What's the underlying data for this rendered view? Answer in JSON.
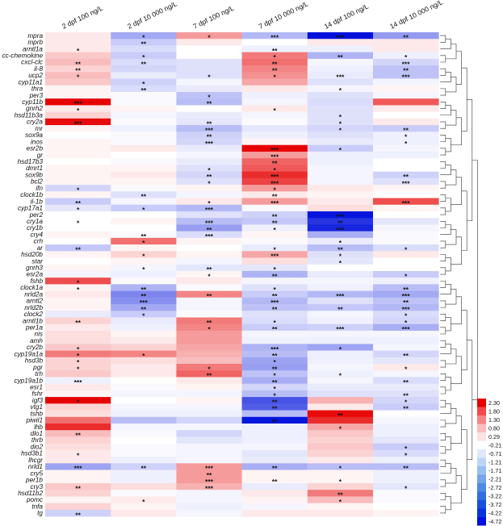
{
  "chart_data": {
    "type": "heatmap",
    "columns": [
      "2 dpf 100 ng/L",
      "2 dpf 10 000 ng/L",
      "7 dpf 100 ng/L",
      "7 dpf 10 000 ng/L",
      "14 dpf 100 ng/L",
      "14 dpf 10 000 ng/L"
    ],
    "rows": [
      "mpra",
      "mprb",
      "arntl1a",
      "cc-chemokine",
      "cxcl-clc",
      "il-8",
      "ucp2",
      "cyp11a1",
      "thra",
      "per3",
      "cyp11b",
      "gnrh2",
      "hsd11b3a",
      "cry2a",
      "mr",
      "sox9a",
      "inos",
      "esr2b",
      "gr",
      "hsd17b3",
      "dmrt1",
      "sox9b",
      "bcl2",
      "ifn",
      "clock1b",
      "il-1b",
      "cyp17a1",
      "per2",
      "cry1a",
      "cry1b",
      "cry4",
      "crh",
      "ar",
      "hsd20b",
      "star",
      "gnrh3",
      "esr2a",
      "fshb",
      "clock1a",
      "nrld2a",
      "arntl2",
      "nrld2b",
      "clock2",
      "arntl1b",
      "per1a",
      "nis",
      "amh",
      "cry2b",
      "cyp19a1a",
      "hsd3b",
      "pgr",
      "trh",
      "cyp19a1b",
      "esr1",
      "fshr",
      "igf3",
      "vtg1",
      "tshb",
      "piwil1",
      "lhb",
      "dlo1",
      "thrb",
      "dio2",
      "hsd3b1",
      "lhcgr",
      "nrld1",
      "cry5",
      "per1b",
      "cry3",
      "hsd11b2",
      "pomc",
      "tnfa",
      "tg"
    ],
    "values": [
      [
        0.2,
        -1.7,
        0.9,
        -1.4,
        -4.7,
        -2.0
      ],
      [
        0.2,
        -1.0,
        0.2,
        0.0,
        0.2,
        0.2
      ],
      [
        0.2,
        -0.7,
        0.0,
        -0.3,
        -0.3,
        0.2
      ],
      [
        0.5,
        -1.0,
        0.0,
        1.2,
        -1.5,
        -0.3
      ],
      [
        0.6,
        -0.7,
        -0.6,
        1.3,
        -0.2,
        -0.8
      ],
      [
        0.4,
        -0.8,
        -0.6,
        1.1,
        -0.3,
        -1.2
      ],
      [
        0.6,
        -0.4,
        -0.6,
        1.0,
        -0.4,
        -1.2
      ],
      [
        0.5,
        -0.9,
        -0.2,
        0.8,
        -0.6,
        -0.2
      ],
      [
        0.1,
        -0.7,
        -0.4,
        0.2,
        -0.2,
        0.1
      ],
      [
        0.1,
        -0.1,
        -1.2,
        -0.3,
        -0.6,
        -0.2
      ],
      [
        2.3,
        -0.1,
        -1.3,
        -0.2,
        -0.7,
        1.5
      ],
      [
        0.2,
        0.1,
        0.0,
        0.2,
        -0.6,
        0.2
      ],
      [
        0.4,
        -0.2,
        -0.4,
        -0.2,
        -0.6,
        0.0
      ],
      [
        2.2,
        -0.1,
        -0.5,
        -0.1,
        -0.6,
        0.2
      ],
      [
        0.1,
        -0.3,
        -1.3,
        -0.5,
        -0.8,
        -1.0
      ],
      [
        0.0,
        -0.1,
        -0.9,
        -0.3,
        -0.6,
        -0.3
      ],
      [
        0.1,
        -0.1,
        -0.8,
        0.1,
        -0.4,
        -0.3
      ],
      [
        0.1,
        0.2,
        -0.4,
        2.3,
        -1.0,
        -0.2
      ],
      [
        0.1,
        0.0,
        -0.2,
        0.9,
        -0.3,
        -0.3
      ],
      [
        0.0,
        -0.1,
        -0.4,
        1.4,
        -0.3,
        0.0
      ],
      [
        0.1,
        0.1,
        -0.6,
        1.5,
        -0.2,
        0.0
      ],
      [
        0.1,
        0.2,
        -0.8,
        1.9,
        -0.2,
        -0.9
      ],
      [
        0.1,
        0.1,
        -0.6,
        1.7,
        -0.2,
        -0.6
      ],
      [
        -0.8,
        -0.1,
        0.1,
        0.9,
        0.2,
        0.1
      ],
      [
        0.1,
        -0.6,
        -0.2,
        0.2,
        0.1,
        0.0
      ],
      [
        -1.0,
        -0.2,
        0.2,
        0.9,
        0.2,
        1.6
      ],
      [
        -0.5,
        -1.0,
        -1.4,
        -0.1,
        0.3,
        0.1
      ],
      [
        0.0,
        0.0,
        -0.6,
        -0.9,
        -4.6,
        0.0
      ],
      [
        0.0,
        0.1,
        -1.3,
        -1.1,
        -4.0,
        -0.5
      ],
      [
        0.0,
        0.0,
        -1.9,
        -0.3,
        -4.3,
        -0.2
      ],
      [
        0.1,
        -0.1,
        -0.7,
        0.1,
        -1.6,
        -0.1
      ],
      [
        0.0,
        1.3,
        0.1,
        -0.1,
        -0.4,
        -0.1
      ],
      [
        -1.1,
        0.1,
        0.0,
        -0.4,
        -1.3,
        -0.7
      ],
      [
        0.1,
        0.4,
        0.1,
        0.8,
        -0.6,
        0.2
      ],
      [
        0.0,
        0.1,
        -0.2,
        0.3,
        -0.5,
        0.0
      ],
      [
        0.1,
        -0.2,
        -0.5,
        -0.5,
        0.0,
        0.0
      ],
      [
        -0.2,
        -0.3,
        0.1,
        -1.5,
        -0.4,
        -1.0
      ],
      [
        1.6,
        -0.1,
        0.2,
        -0.2,
        -0.2,
        -0.3
      ],
      [
        0.1,
        -1.5,
        -0.1,
        -0.6,
        -0.3,
        -1.3
      ],
      [
        0.2,
        -2.4,
        1.1,
        -1.0,
        -1.4,
        -1.7
      ],
      [
        0.1,
        -2.2,
        -0.2,
        -1.4,
        -0.6,
        -1.2
      ],
      [
        0.1,
        -1.7,
        -0.2,
        -1.2,
        -1.1,
        -1.4
      ],
      [
        -0.4,
        -1.0,
        -0.1,
        -0.6,
        -0.2,
        -0.7
      ],
      [
        0.4,
        -0.4,
        1.2,
        -0.7,
        -0.3,
        -0.8
      ],
      [
        0.2,
        -0.3,
        1.1,
        -1.0,
        -0.9,
        -1.6
      ],
      [
        0.3,
        0.1,
        0.9,
        -0.2,
        -0.2,
        -0.2
      ],
      [
        0.3,
        0.2,
        0.9,
        -0.3,
        -0.3,
        -0.3
      ],
      [
        0.5,
        0.4,
        0.8,
        -1.5,
        -1.8,
        -0.2
      ],
      [
        1.2,
        1.1,
        0.7,
        -1.3,
        -0.3,
        -0.8
      ],
      [
        0.4,
        0.3,
        0.6,
        -1.8,
        -0.3,
        -0.5
      ],
      [
        0.4,
        0.2,
        1.2,
        -1.9,
        -0.2,
        0.2
      ],
      [
        0.5,
        0.2,
        1.4,
        -1.2,
        -0.3,
        -0.2
      ],
      [
        -0.3,
        0.0,
        0.2,
        -1.6,
        -0.2,
        -0.7
      ],
      [
        0.2,
        -0.1,
        0.1,
        -0.8,
        -0.4,
        -0.4
      ],
      [
        0.1,
        -0.2,
        -0.2,
        -1.3,
        -0.6,
        -0.6
      ],
      [
        2.3,
        0.0,
        0.1,
        -3.4,
        0.7,
        -0.8
      ],
      [
        0.4,
        -0.2,
        -0.2,
        -3.2,
        0.2,
        -1.0
      ],
      [
        0.3,
        -0.3,
        -0.3,
        -1.3,
        2.2,
        0.0
      ],
      [
        1.3,
        -1.3,
        -0.8,
        -4.6,
        1.9,
        -0.2
      ],
      [
        1.9,
        -0.2,
        -0.2,
        -0.3,
        0.8,
        -0.3
      ],
      [
        0.6,
        -0.1,
        -0.8,
        -0.3,
        0.5,
        -0.3
      ],
      [
        0.4,
        0.0,
        -0.5,
        -0.3,
        0.4,
        -0.5
      ],
      [
        0.3,
        -0.1,
        -0.2,
        -0.2,
        0.5,
        -1.0
      ],
      [
        0.2,
        -0.1,
        -0.2,
        -0.5,
        0.4,
        -0.7
      ],
      [
        0.2,
        -0.3,
        -0.2,
        -0.4,
        0.2,
        -0.3
      ],
      [
        -1.8,
        -0.9,
        0.9,
        -1.6,
        -1.3,
        -1.3
      ],
      [
        0.1,
        -0.3,
        0.9,
        0.1,
        0.1,
        -0.3
      ],
      [
        0.1,
        -0.3,
        0.9,
        0.1,
        0.1,
        -0.3
      ],
      [
        0.5,
        0.3,
        0.7,
        -0.4,
        0.4,
        -0.5
      ],
      [
        0.4,
        -0.1,
        -0.2,
        0.2,
        1.2,
        -0.1
      ],
      [
        0.1,
        0.2,
        -0.2,
        0.1,
        0.6,
        -0.1
      ],
      [
        0.4,
        0.1,
        -0.3,
        -0.2,
        0.1,
        0.0
      ],
      [
        -0.9,
        0.2,
        -0.2,
        0.2,
        0.2,
        0.1
      ]
    ],
    "significance": [
      [
        "",
        "*",
        "*",
        "***",
        "***",
        "**"
      ],
      [
        "",
        "**",
        "",
        "",
        "",
        ""
      ],
      [
        "*",
        "",
        "",
        "**",
        "",
        ""
      ],
      [
        "",
        "*",
        "",
        "*",
        "**",
        "*"
      ],
      [
        "**",
        "**",
        "",
        "**",
        "",
        "***"
      ],
      [
        "**",
        "",
        "",
        "**",
        "",
        "**"
      ],
      [
        "*",
        "",
        "*",
        "*",
        "***",
        "***"
      ],
      [
        "",
        "*",
        "",
        "",
        "",
        ""
      ],
      [
        "",
        "**",
        "",
        "",
        "*",
        ""
      ],
      [
        "",
        "",
        "*",
        "",
        "",
        ""
      ],
      [
        "***",
        "",
        "**",
        "",
        "",
        ""
      ],
      [
        "*",
        "",
        "",
        "*",
        "",
        ""
      ],
      [
        "",
        "",
        "",
        "",
        "*",
        ""
      ],
      [
        "***",
        "",
        "**",
        "",
        "*",
        ""
      ],
      [
        "",
        "",
        "***",
        "",
        "*",
        "**"
      ],
      [
        "",
        "",
        "**",
        "",
        "",
        "*"
      ],
      [
        "",
        "",
        "***",
        "",
        "",
        "*"
      ],
      [
        "",
        "",
        "",
        "***",
        "*",
        ""
      ],
      [
        "",
        "",
        "",
        "***",
        "",
        ""
      ],
      [
        "",
        "",
        "",
        "**",
        "",
        ""
      ],
      [
        "",
        "",
        "*",
        "*",
        "",
        ""
      ],
      [
        "",
        "",
        "**",
        "***",
        "",
        "**"
      ],
      [
        "",
        "",
        "*",
        "***",
        "",
        "***"
      ],
      [
        "*",
        "",
        "",
        "*",
        "",
        ""
      ],
      [
        "",
        "**",
        "",
        "**",
        "",
        ""
      ],
      [
        "**",
        "",
        "*",
        "***",
        "",
        "***"
      ],
      [
        "*",
        "*",
        "***",
        "",
        "",
        ""
      ],
      [
        "",
        "",
        "",
        "**",
        "***",
        ""
      ],
      [
        "*",
        "",
        "***",
        "**",
        "**",
        ""
      ],
      [
        "",
        "",
        "**",
        "*",
        "***",
        ""
      ],
      [
        "",
        "**",
        "***",
        "",
        "",
        ""
      ],
      [
        "",
        "*",
        "",
        "",
        "*",
        ""
      ],
      [
        "**",
        "",
        "",
        "*",
        "**",
        "*"
      ],
      [
        "",
        "*",
        "",
        "***",
        "*",
        ""
      ],
      [
        "",
        "",
        "",
        "",
        "*",
        ""
      ],
      [
        "",
        "*",
        "**",
        "*",
        "",
        ""
      ],
      [
        "",
        "",
        "*",
        "**",
        "",
        "*"
      ],
      [
        "*",
        "",
        "",
        "",
        "",
        ""
      ],
      [
        "*",
        "**",
        "",
        "*",
        "",
        "**"
      ],
      [
        "",
        "**",
        "**",
        "**",
        "***",
        "***"
      ],
      [
        "",
        "***",
        "",
        "***",
        "",
        "**"
      ],
      [
        "",
        "**",
        "",
        "**",
        "**",
        "***"
      ],
      [
        "",
        "*",
        "",
        "",
        "",
        "*"
      ],
      [
        "**",
        "",
        "**",
        "*",
        "",
        "*"
      ],
      [
        "",
        "",
        "*",
        "**",
        "***",
        "***"
      ],
      [
        "",
        "",
        "",
        "",
        "",
        ""
      ],
      [
        "",
        "",
        "",
        "",
        "",
        ""
      ],
      [
        "*",
        "",
        "",
        "***",
        "*",
        ""
      ],
      [
        "*",
        "*",
        "",
        "**",
        "",
        "**"
      ],
      [
        "*",
        "",
        "",
        "*",
        "",
        ""
      ],
      [
        "*",
        "",
        "*",
        "**",
        "",
        "*"
      ],
      [
        "",
        "",
        "**",
        "*",
        "*",
        ""
      ],
      [
        "***",
        "",
        "",
        "**",
        "",
        "**"
      ],
      [
        "",
        "",
        "",
        "*",
        "",
        ""
      ],
      [
        "",
        "",
        "",
        "*",
        "",
        "**"
      ],
      [
        "*",
        "",
        "",
        "**",
        "",
        "*"
      ],
      [
        "",
        "",
        "",
        "**",
        "",
        "**"
      ],
      [
        "",
        "",
        "",
        "",
        "**",
        ""
      ],
      [
        "",
        "",
        "",
        "**",
        "",
        ""
      ],
      [
        "",
        "",
        "",
        "",
        "*",
        ""
      ],
      [
        "**",
        "",
        "",
        "",
        "",
        ""
      ],
      [
        "",
        "",
        "",
        "",
        "",
        ""
      ],
      [
        "",
        "",
        "",
        "",
        "",
        "*"
      ],
      [
        "*",
        "",
        "",
        "",
        "",
        "*"
      ],
      [
        "",
        "",
        "",
        "",
        "",
        ""
      ],
      [
        "***",
        "**",
        "***",
        "**",
        "*",
        "**"
      ],
      [
        "",
        "",
        "**",
        "",
        "",
        ""
      ],
      [
        "",
        "",
        "***",
        "**",
        "*",
        ""
      ],
      [
        "**",
        "",
        "***",
        "",
        "",
        "*"
      ],
      [
        "",
        "",
        "",
        "",
        "**",
        ""
      ],
      [
        "",
        "*",
        "",
        "",
        "*",
        ""
      ],
      [
        "",
        "",
        "",
        "",
        "",
        ""
      ],
      [
        "**",
        "",
        "",
        "",
        "",
        ""
      ]
    ],
    "legend": {
      "ticks": [
        "2.30",
        "1.80",
        "1.30",
        "0.80",
        "0.29",
        "-0.21",
        "-0.71",
        "-1.21",
        "-1.71",
        "-2.21",
        "-2.72",
        "-3.22",
        "-3.72",
        "-4.22",
        "-4.72"
      ],
      "colors": [
        "#e60000",
        "#f04a4a",
        "#f78585",
        "#fbbcbc",
        "#fde2e2",
        "#ffffff",
        "#dde9fa",
        "#bcd4f6",
        "#98bdf0",
        "#74a4ea",
        "#4f8ae3",
        "#2f6edc",
        "#1750dc",
        "#0733dc",
        "#0010dc"
      ]
    },
    "dendrogram": true,
    "colors": {
      "positive": "#e60000",
      "zero": "#ffffff",
      "negative": "#0010dc"
    }
  }
}
